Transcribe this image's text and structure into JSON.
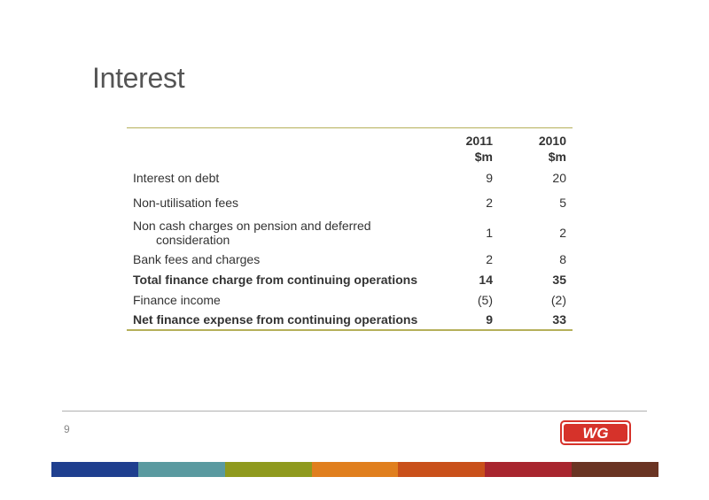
{
  "title": "Interest",
  "table": {
    "headers": {
      "col1_year": "2011",
      "col1_unit": "$m",
      "col2_year": "2010",
      "col2_unit": "$m"
    },
    "rows": [
      {
        "label": "Interest on debt",
        "v2011": "9",
        "v2010": "20",
        "bold": false
      },
      {
        "label": "Non-utilisation fees",
        "v2011": "2",
        "v2010": "5",
        "bold": false
      },
      {
        "label": "Non cash charges on pension and deferred",
        "label2": "consideration",
        "v2011": "1",
        "v2010": "2",
        "bold": false
      },
      {
        "label": "Bank fees and charges",
        "v2011": "2",
        "v2010": "8",
        "bold": false
      },
      {
        "label": "Total finance charge from continuing operations",
        "v2011": "14",
        "v2010": "35",
        "bold": true
      },
      {
        "label": "Finance income",
        "v2011": "(5)",
        "v2010": "(2)",
        "bold": false
      },
      {
        "label": "Net finance expense from continuing operations",
        "v2011": "9",
        "v2010": "33",
        "bold": true
      }
    ]
  },
  "footer": {
    "page_number": "9",
    "logo_text": "WG"
  },
  "colors": {
    "rule": "#b5b05a",
    "logo_red": "#d6322a",
    "bar": [
      "#1f3f8f",
      "#5a9aa0",
      "#8f9a1e",
      "#e07f1e",
      "#c9501a",
      "#a8252e",
      "#6a3423"
    ]
  }
}
